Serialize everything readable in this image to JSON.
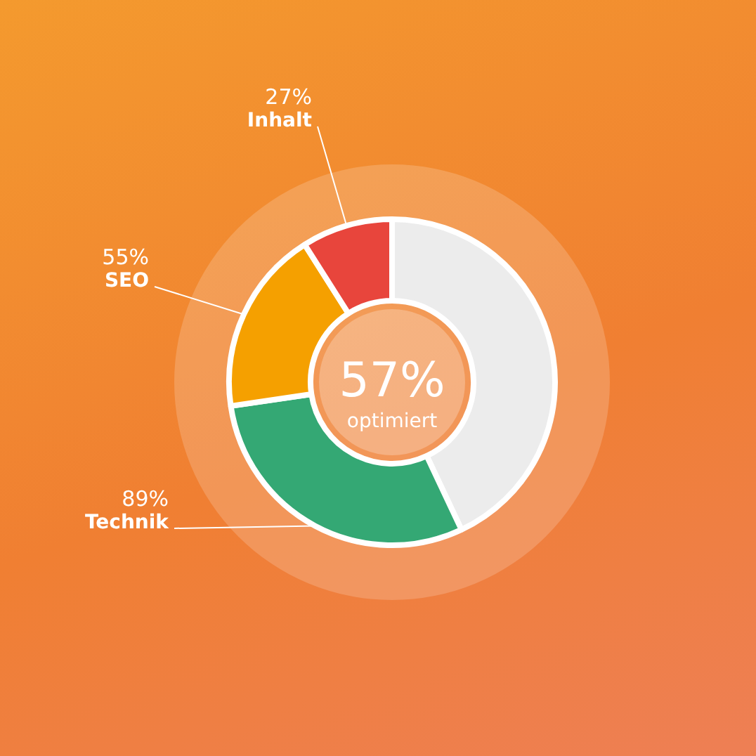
{
  "chart_data": {
    "type": "donut",
    "categories": [
      null,
      "Technik",
      "SEO",
      "Inhalt"
    ],
    "values": [
      129,
      89,
      55,
      27
    ],
    "colors": [
      "#ececec",
      "#34a874",
      "#f5a000",
      "#e8453c"
    ],
    "value_labels": [
      null,
      "89%",
      "55%",
      "27%"
    ],
    "annotations": [
      "57%",
      "optimiert"
    ],
    "legend": false
  }
}
